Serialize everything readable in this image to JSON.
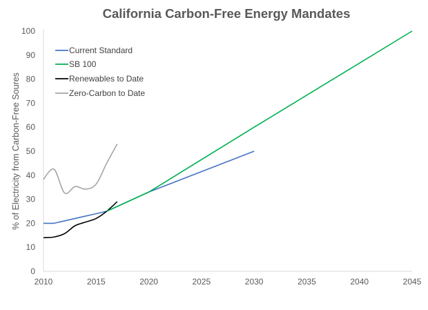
{
  "chart_data": {
    "type": "line",
    "title": "California Carbon-Free Energy Mandates",
    "xlabel": "",
    "ylabel": "% of Electricity from Carbon-Free Soures",
    "xlim": [
      2010,
      2045
    ],
    "ylim": [
      0,
      100
    ],
    "xticks": [
      2010,
      2015,
      2020,
      2025,
      2030,
      2035,
      2040,
      2045
    ],
    "yticks": [
      0,
      10,
      20,
      30,
      40,
      50,
      60,
      70,
      80,
      90,
      100
    ],
    "grid": false,
    "legend_position": "top-left",
    "series": [
      {
        "name": "Current Standard",
        "color": "#4472C4",
        "smooth": false,
        "x": [
          2010,
          2011,
          2012,
          2013,
          2014,
          2015,
          2016,
          2020,
          2030
        ],
        "y": [
          20,
          20,
          21,
          22,
          23,
          24,
          25,
          33,
          50
        ]
      },
      {
        "name": "SB 100",
        "color": "#00B050",
        "smooth": false,
        "x": [
          2016,
          2020,
          2030,
          2045
        ],
        "y": [
          25,
          33,
          60,
          100
        ]
      },
      {
        "name": "Renewables to Date",
        "color": "#000000",
        "smooth": true,
        "x": [
          2010,
          2011,
          2012,
          2013,
          2014,
          2015,
          2016,
          2017
        ],
        "y": [
          14,
          14.3,
          15.7,
          19,
          20.5,
          22,
          25,
          29
        ]
      },
      {
        "name": "Zero-Carbon to Date",
        "color": "#A5A5A5",
        "smooth": true,
        "x": [
          2010,
          2011,
          2012,
          2013,
          2014,
          2015,
          2016,
          2017
        ],
        "y": [
          38.3,
          42.5,
          32.6,
          35.3,
          34.2,
          36.3,
          45,
          53
        ]
      }
    ]
  }
}
